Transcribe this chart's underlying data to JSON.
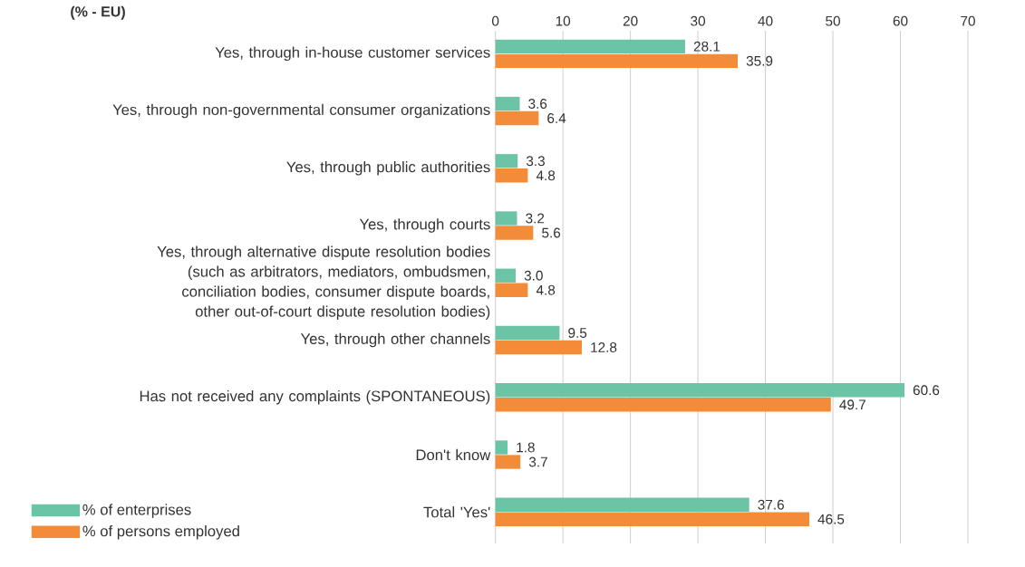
{
  "chart_data": {
    "type": "bar",
    "orientation": "horizontal",
    "title": "(% - EU)",
    "categories": [
      "Yes, through in-house customer services",
      "Yes, through non-governmental consumer organizations",
      "Yes, through public authorities",
      "Yes, through courts",
      "Yes, through alternative dispute resolution bodies (such as arbitrators, mediators, ombudsmen, conciliation bodies, consumer dispute boards, other out-of-court dispute resolution bodies)",
      "Yes, through other channels",
      "Has not received any complaints (SPONTANEOUS)",
      "Don't know",
      "Total 'Yes'"
    ],
    "series": [
      {
        "name": "% of enterprises",
        "color": "#6cc4a6",
        "values": [
          28.1,
          3.6,
          3.3,
          3.2,
          3.0,
          9.5,
          60.6,
          1.8,
          37.6
        ],
        "value_labels": [
          "28.1",
          "3.6",
          "3.3",
          "3.2",
          "3.0",
          "9.5",
          "60.6",
          "1.8",
          "37.6"
        ]
      },
      {
        "name": "% of persons employed",
        "color": "#f28c38",
        "values": [
          35.9,
          6.4,
          4.8,
          5.6,
          4.8,
          12.8,
          49.7,
          3.7,
          46.5
        ],
        "value_labels": [
          "35.9",
          "6.4",
          "4.8",
          "5.6",
          "4.8",
          "12.8",
          "49.7",
          "3.7",
          "46.5"
        ]
      }
    ],
    "xlim": [
      0,
      70
    ],
    "xticks": [
      0,
      10,
      20,
      30,
      40,
      50,
      60,
      70
    ],
    "grid": "x",
    "legend": "bottom left"
  }
}
